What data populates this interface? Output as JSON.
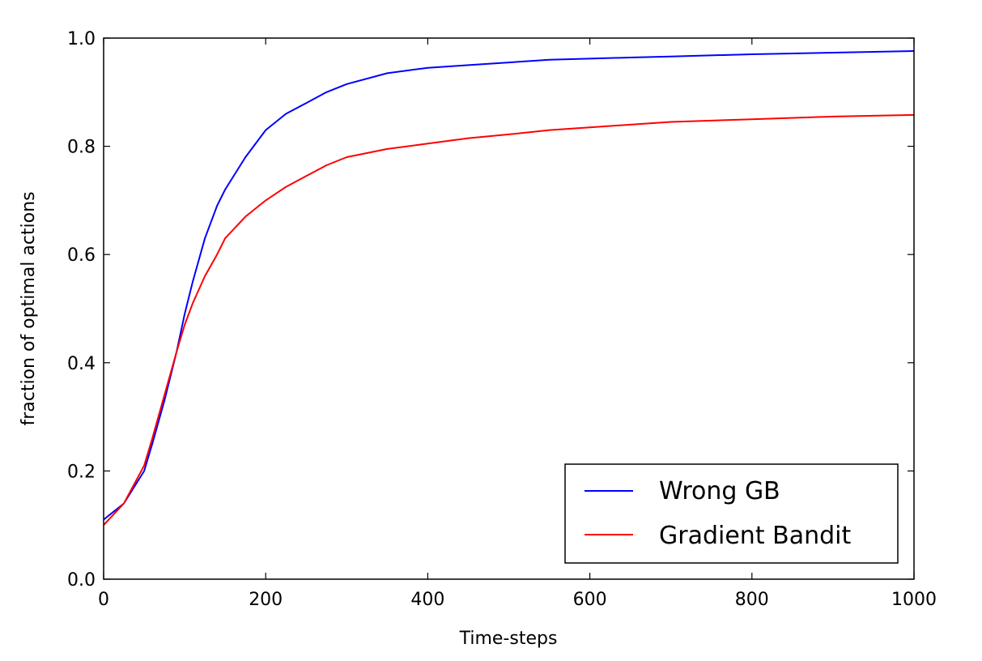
{
  "chart_data": {
    "type": "line",
    "title": "",
    "xlabel": "Time-steps",
    "ylabel": "fraction of optimal actions",
    "xlim": [
      0,
      1000
    ],
    "ylim": [
      0.0,
      1.0
    ],
    "xticks": [
      "0",
      "200",
      "400",
      "600",
      "800",
      "1000"
    ],
    "yticks": [
      "0.0",
      "0.2",
      "0.4",
      "0.6",
      "0.8",
      "1.0"
    ],
    "grid": false,
    "legend_position": "bottom-right",
    "series": [
      {
        "name": "Wrong GB",
        "color": "#0000ff",
        "x": [
          0,
          25,
          50,
          60,
          75,
          90,
          100,
          110,
          125,
          140,
          150,
          175,
          200,
          225,
          250,
          275,
          300,
          350,
          400,
          450,
          500,
          550,
          600,
          650,
          700,
          800,
          900,
          1000
        ],
        "y": [
          0.11,
          0.14,
          0.2,
          0.25,
          0.33,
          0.42,
          0.49,
          0.55,
          0.63,
          0.69,
          0.72,
          0.78,
          0.83,
          0.86,
          0.88,
          0.9,
          0.915,
          0.935,
          0.945,
          0.95,
          0.955,
          0.96,
          0.962,
          0.964,
          0.966,
          0.97,
          0.973,
          0.976
        ]
      },
      {
        "name": "Gradient Bandit",
        "color": "#ff0000",
        "x": [
          0,
          25,
          50,
          60,
          75,
          90,
          100,
          110,
          125,
          140,
          150,
          175,
          200,
          225,
          250,
          275,
          300,
          350,
          400,
          450,
          500,
          550,
          600,
          650,
          700,
          800,
          900,
          1000
        ],
        "y": [
          0.1,
          0.14,
          0.21,
          0.26,
          0.34,
          0.42,
          0.47,
          0.51,
          0.56,
          0.6,
          0.63,
          0.67,
          0.7,
          0.725,
          0.745,
          0.765,
          0.78,
          0.795,
          0.805,
          0.815,
          0.822,
          0.83,
          0.835,
          0.84,
          0.845,
          0.85,
          0.855,
          0.858
        ]
      }
    ]
  }
}
